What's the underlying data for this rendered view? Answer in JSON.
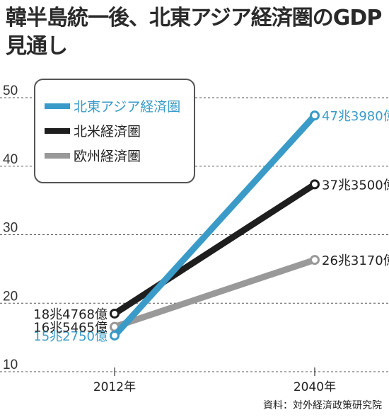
{
  "title": "韓半島統一後、北東アジア経済圏のGDP見通し",
  "source": "資料：対外経済政策研究院",
  "chart_data": {
    "type": "line",
    "title": "韓半島統一後、北東アジア経済圏のGDP見通し",
    "categories": [
      "2012年",
      "2040年"
    ],
    "ylim": [
      10,
      50
    ],
    "yticks": [
      10,
      20,
      30,
      40,
      50
    ],
    "grid": true,
    "legend_position": "top-left",
    "series": [
      {
        "name": "北東アジア経済圏",
        "values": [
          15.275,
          47.398
        ],
        "labels": [
          "15兆2750億",
          "47兆3980億"
        ],
        "color": "#3a9bc8"
      },
      {
        "name": "北米経済圏",
        "values": [
          18.4768,
          37.35
        ],
        "labels": [
          "18兆4768億",
          "37兆3500億"
        ],
        "color": "#1e1e1e"
      },
      {
        "name": "欧州経済圏",
        "values": [
          16.5465,
          26.317
        ],
        "labels": [
          "16兆5465億",
          "26兆3170億"
        ],
        "color": "#999999"
      }
    ]
  }
}
